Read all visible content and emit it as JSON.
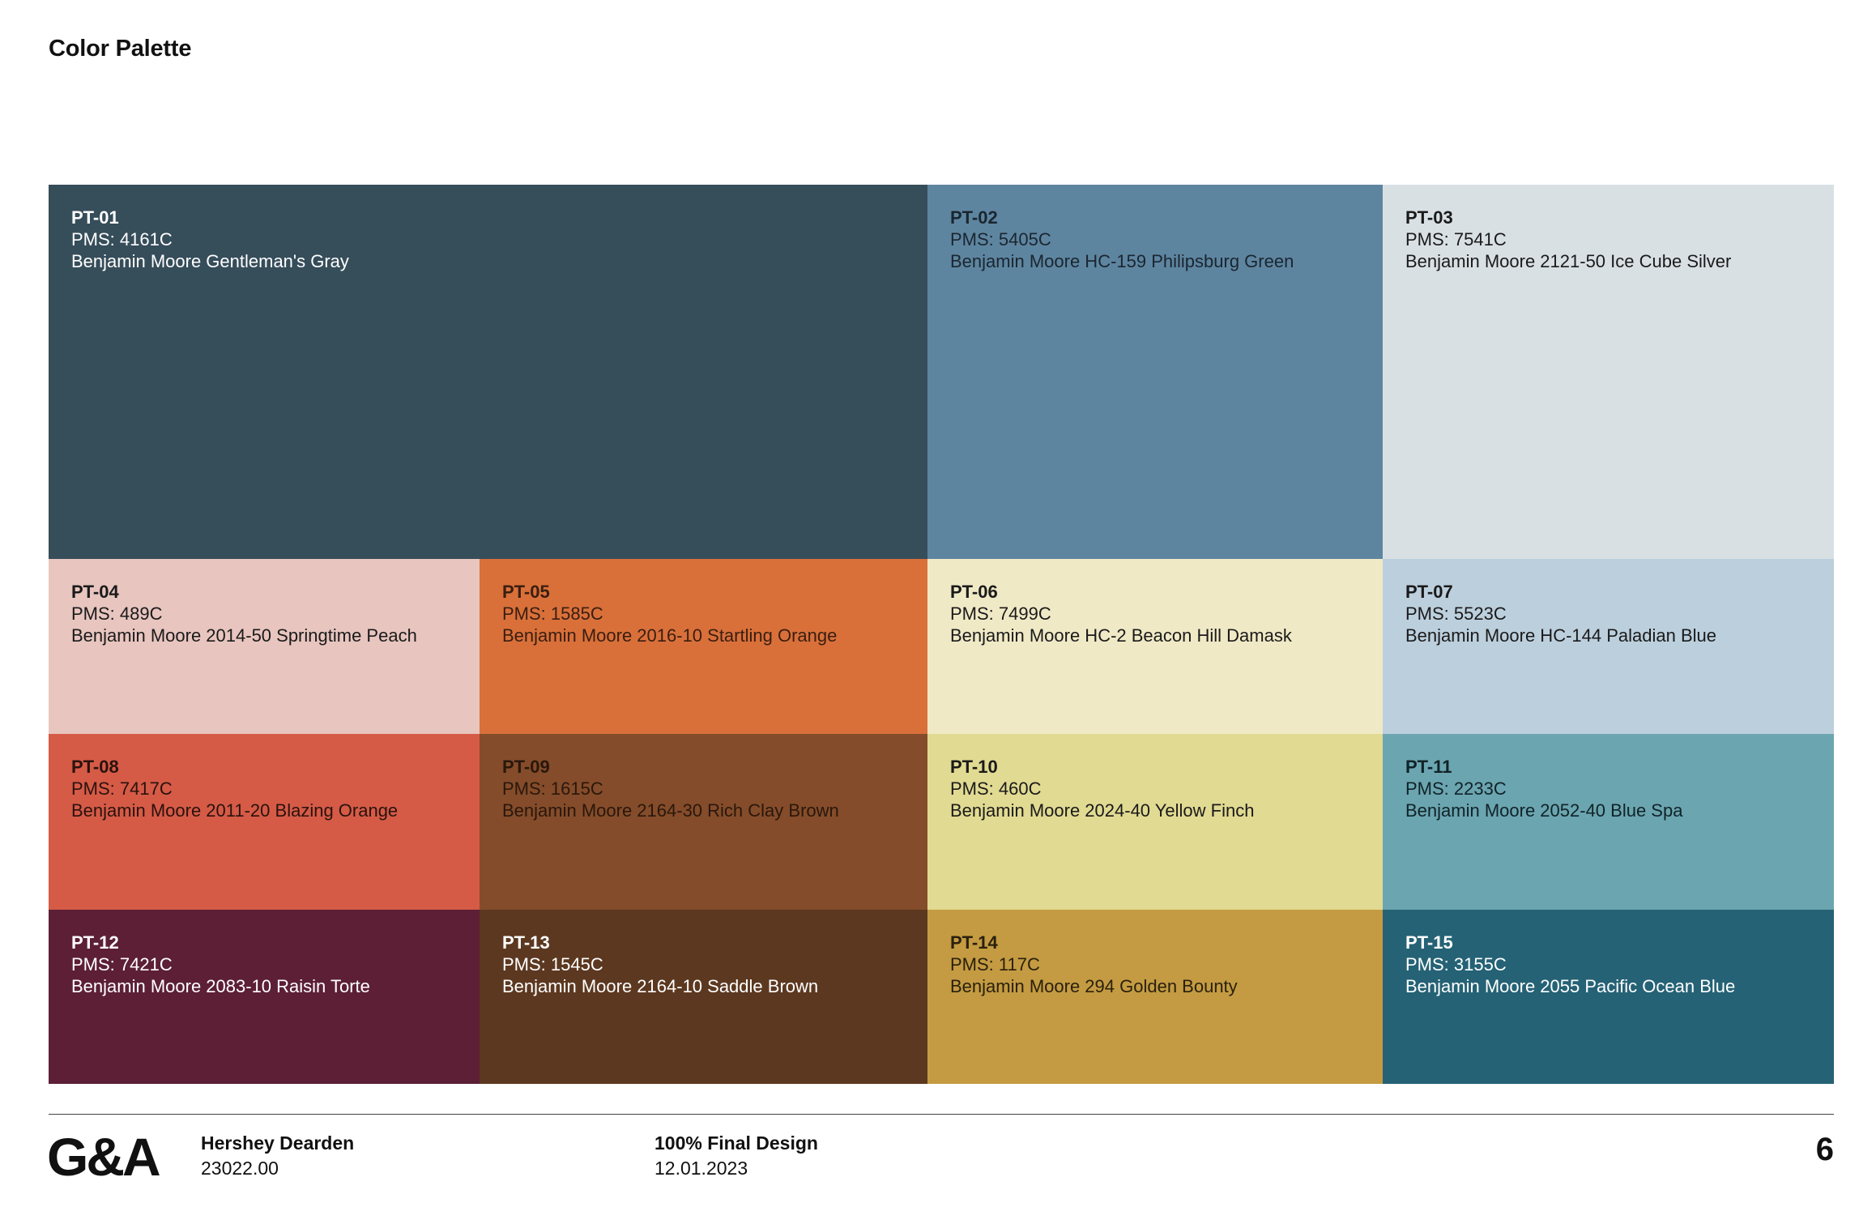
{
  "page": {
    "title": "Color Palette",
    "page_number": "6"
  },
  "swatches": [
    {
      "code": "PT-01",
      "pms": "PMS: 4161C",
      "name": "Benjamin Moore Gentleman's Gray",
      "color": "#364d5a",
      "text_color": "#ffffff"
    },
    {
      "code": "PT-02",
      "pms": "PMS: 5405C",
      "name": "Benjamin Moore HC-159 Philipsburg Green",
      "color": "#5e85a0",
      "text_color": "#1a2630"
    },
    {
      "code": "PT-03",
      "pms": "PMS: 7541C",
      "name": "Benjamin Moore 2121-50 Ice Cube Silver",
      "color": "#d9e0e4",
      "text_color": "#1a1a1a"
    },
    {
      "code": "PT-04",
      "pms": "PMS: 489C",
      "name": "Benjamin Moore 2014-50 Springtime Peach",
      "color": "#e8c5bf",
      "text_color": "#1a1a1a"
    },
    {
      "code": "PT-05",
      "pms": "PMS: 1585C",
      "name": "Benjamin Moore 2016-10 Startling Orange",
      "color": "#d9703a",
      "text_color": "#3a1e10"
    },
    {
      "code": "PT-06",
      "pms": "PMS: 7499C",
      "name": "Benjamin Moore HC-2 Beacon Hill Damask",
      "color": "#f0e9c6",
      "text_color": "#1a1a1a"
    },
    {
      "code": "PT-07",
      "pms": "PMS: 5523C",
      "name": "Benjamin Moore HC-144 Paladian Blue",
      "color": "#bccfdd",
      "text_color": "#1a1a1a"
    },
    {
      "code": "PT-08",
      "pms": "PMS: 7417C",
      "name": "Benjamin Moore 2011-20 Blazing Orange",
      "color": "#d55b47",
      "text_color": "#2a120d"
    },
    {
      "code": "PT-09",
      "pms": "PMS: 1615C",
      "name": "Benjamin Moore 2164-30 Rich Clay Brown",
      "color": "#844c2a",
      "text_color": "#2a170c"
    },
    {
      "code": "PT-10",
      "pms": "PMS: 460C",
      "name": "Benjamin Moore 2024-40 Yellow Finch",
      "color": "#e1da92",
      "text_color": "#1a1a1a"
    },
    {
      "code": "PT-11",
      "pms": "PMS: 2233C",
      "name": "Benjamin Moore 2052-40 Blue Spa",
      "color": "#6ba5b0",
      "text_color": "#102328"
    },
    {
      "code": "PT-12",
      "pms": "PMS: 7421C",
      "name": "Benjamin Moore 2083-10 Raisin Torte",
      "color": "#5c1f36",
      "text_color": "#ffffff"
    },
    {
      "code": "PT-13",
      "pms": "PMS: 1545C",
      "name": "Benjamin Moore 2164-10 Saddle Brown",
      "color": "#5c3820",
      "text_color": "#ffffff"
    },
    {
      "code": "PT-14",
      "pms": "PMS: 117C",
      "name": "Benjamin Moore 294 Golden Bounty",
      "color": "#c49b42",
      "text_color": "#2a200d"
    },
    {
      "code": "PT-15",
      "pms": "PMS: 3155C",
      "name": "Benjamin Moore 2055 Pacific Ocean Blue",
      "color": "#256275",
      "text_color": "#ffffff"
    }
  ],
  "footer": {
    "logo": "G&A",
    "client": "Hershey Dearden",
    "project_number": "23022.00",
    "phase": "100% Final Design",
    "date": "12.01.2023"
  }
}
